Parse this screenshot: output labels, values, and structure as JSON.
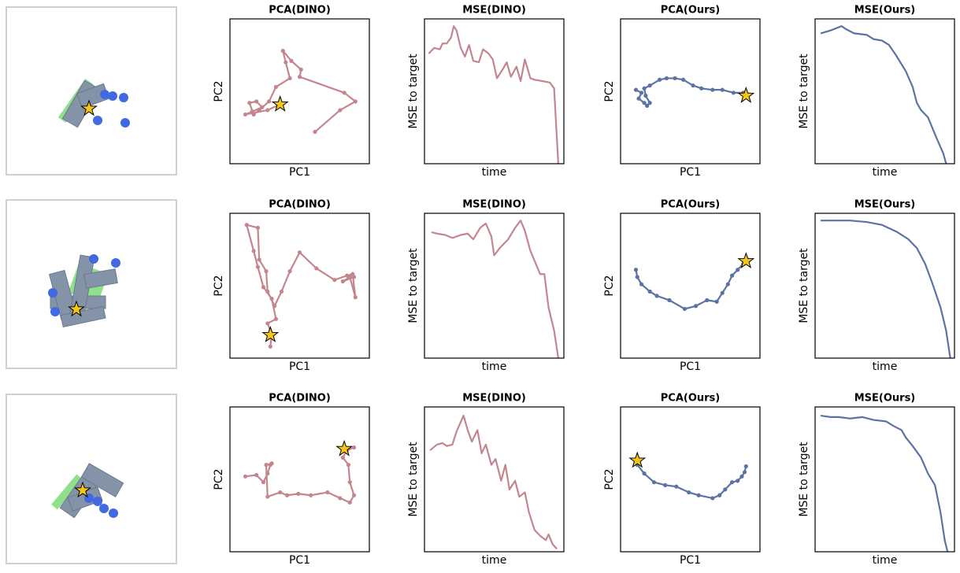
{
  "chart_data": [
    {
      "type": "line",
      "title": "PCA(DINO)",
      "xlabel": "PC1",
      "ylabel": "PC2",
      "marker": true,
      "color": "#c4868e",
      "xlim": [
        0,
        100
      ],
      "ylim": [
        0,
        100
      ],
      "x": [
        61,
        79,
        90,
        82,
        50,
        51,
        44,
        38,
        40,
        43,
        33,
        28,
        21,
        17,
        14,
        19,
        23,
        16,
        11,
        27,
        36
      ],
      "values": [
        22,
        37,
        43,
        49,
        60,
        65,
        71,
        78,
        70,
        59,
        53,
        43,
        37,
        34,
        42,
        43,
        39,
        36,
        34,
        37,
        41
      ],
      "target": {
        "x": 36,
        "y": 41
      }
    },
    {
      "type": "line",
      "title": "MSE(DINO)",
      "xlabel": "time",
      "ylabel": "MSE to target",
      "marker": false,
      "color": "#c4868e",
      "xlim": [
        0,
        100
      ],
      "ylim": [
        0,
        100
      ],
      "x": [
        3,
        7,
        11,
        13,
        16,
        19,
        21,
        23,
        26,
        29,
        32,
        35,
        39,
        42,
        46,
        49,
        52,
        56,
        59,
        62,
        66,
        69,
        72,
        76,
        79,
        85,
        90,
        93,
        96
      ],
      "values": [
        76,
        80,
        79,
        83,
        83,
        87,
        95,
        92,
        80,
        74,
        82,
        71,
        70,
        79,
        76,
        72,
        59,
        65,
        70,
        60,
        67,
        57,
        72,
        59,
        58,
        57,
        56,
        52,
        0
      ]
    },
    {
      "type": "line",
      "title": "PCA(Ours)",
      "xlabel": "PC1",
      "ylabel": "PC2",
      "marker": true,
      "color": "#5a73a3",
      "xlim": [
        0,
        100
      ],
      "ylim": [
        0,
        100
      ],
      "x": [
        11,
        15,
        13,
        17,
        19,
        21,
        18,
        17,
        21,
        28,
        33,
        39,
        45,
        52,
        58,
        66,
        73,
        81,
        88,
        91
      ],
      "values": [
        51,
        49,
        45,
        42,
        40,
        42,
        47,
        52,
        54,
        58,
        59,
        59,
        58,
        54,
        52,
        51,
        51,
        49,
        49,
        48
      ],
      "target": {
        "x": 90,
        "y": 47
      }
    },
    {
      "type": "line",
      "title": "MSE(Ours)",
      "xlabel": "time",
      "ylabel": "MSE to target",
      "marker": false,
      "color": "#5a73a3",
      "xlim": [
        0,
        100
      ],
      "ylim": [
        0,
        100
      ],
      "x": [
        4,
        11,
        19,
        22,
        28,
        37,
        42,
        48,
        53,
        58,
        65,
        70,
        73,
        76,
        81,
        87,
        92,
        94
      ],
      "values": [
        90,
        92,
        95,
        93,
        90,
        89,
        86,
        85,
        82,
        75,
        64,
        53,
        42,
        37,
        32,
        18,
        7,
        0
      ]
    },
    {
      "type": "line",
      "title": "PCA(DINO)",
      "xlabel": "PC1",
      "ylabel": "PC2",
      "marker": true,
      "color": "#c4868e",
      "xlim": [
        0,
        100
      ],
      "ylim": [
        0,
        100
      ],
      "x": [
        29,
        30,
        27,
        33,
        30,
        24,
        20,
        17,
        12,
        20,
        21,
        26,
        27,
        32,
        37,
        43,
        50,
        62,
        75,
        84,
        88,
        90,
        86,
        81,
        89
      ],
      "values": [
        8,
        16,
        24,
        27,
        41,
        49,
        63,
        74,
        92,
        90,
        68,
        60,
        46,
        36,
        46,
        60,
        73,
        62,
        54,
        57,
        58,
        42,
        56,
        53,
        56
      ],
      "target": {
        "x": 29,
        "y": 16
      }
    },
    {
      "type": "line",
      "title": "MSE(DINO)",
      "xlabel": "time",
      "ylabel": "MSE to target",
      "marker": false,
      "color": "#c4868e",
      "xlim": [
        0,
        100
      ],
      "ylim": [
        0,
        100
      ],
      "x": [
        5,
        9,
        15,
        20,
        26,
        31,
        35,
        40,
        44,
        48,
        50,
        54,
        60,
        65,
        69,
        72,
        76,
        83,
        86,
        89,
        93,
        96
      ],
      "values": [
        87,
        86,
        85,
        83,
        85,
        86,
        82,
        90,
        93,
        84,
        71,
        76,
        82,
        90,
        95,
        88,
        74,
        58,
        58,
        35,
        19,
        0
      ]
    },
    {
      "type": "line",
      "title": "PCA(Ours)",
      "xlabel": "PC1",
      "ylabel": "PC2",
      "marker": true,
      "color": "#5a73a3",
      "xlim": [
        0,
        100
      ],
      "ylim": [
        0,
        100
      ],
      "x": [
        11,
        12,
        15,
        21,
        26,
        35,
        46,
        54,
        62,
        69,
        73,
        77,
        80,
        84,
        88,
        91
      ],
      "values": [
        61,
        56,
        51,
        46,
        43,
        40,
        34,
        36,
        40,
        39,
        45,
        51,
        57,
        61,
        65,
        68
      ],
      "target": {
        "x": 90,
        "y": 67
      }
    },
    {
      "type": "line",
      "title": "MSE(Ours)",
      "xlabel": "time",
      "ylabel": "MSE to target",
      "marker": false,
      "color": "#5a73a3",
      "xlim": [
        0,
        100
      ],
      "ylim": [
        0,
        100
      ],
      "x": [
        4,
        14,
        25,
        37,
        48,
        59,
        67,
        73,
        79,
        84,
        90,
        94,
        97
      ],
      "values": [
        95,
        95,
        95,
        94,
        92,
        87,
        82,
        76,
        65,
        52,
        35,
        19,
        0
      ]
    },
    {
      "type": "line",
      "title": "PCA(DINO)",
      "xlabel": "PC1",
      "ylabel": "PC2",
      "marker": true,
      "color": "#c4868e",
      "xlim": [
        0,
        100
      ],
      "ylim": [
        0,
        100
      ],
      "x": [
        11,
        19,
        24,
        27,
        29,
        30,
        26,
        27,
        36,
        41,
        49,
        58,
        70,
        79,
        86,
        89,
        86,
        85,
        81,
        84,
        89
      ],
      "values": [
        52,
        53,
        48,
        54,
        60,
        61,
        60,
        38,
        41,
        39,
        40,
        39,
        41,
        37,
        34,
        39,
        48,
        60,
        65,
        70,
        72
      ],
      "target": {
        "x": 82,
        "y": 71
      }
    },
    {
      "type": "line",
      "title": "MSE(DINO)",
      "xlabel": "time",
      "ylabel": "MSE to target",
      "marker": false,
      "color": "#c4868e",
      "xlim": [
        0,
        100
      ],
      "ylim": [
        0,
        100
      ],
      "x": [
        4,
        9,
        13,
        16,
        20,
        23,
        28,
        31,
        34,
        38,
        41,
        44,
        48,
        51,
        55,
        58,
        61,
        65,
        68,
        72,
        75,
        79,
        83,
        87,
        89,
        92,
        95
      ],
      "values": [
        70,
        74,
        75,
        73,
        74,
        83,
        94,
        84,
        76,
        84,
        68,
        74,
        60,
        64,
        49,
        60,
        43,
        49,
        38,
        41,
        27,
        15,
        11,
        8,
        12,
        5,
        2
      ]
    },
    {
      "type": "line",
      "title": "PCA(Ours)",
      "xlabel": "PC1",
      "ylabel": "PC2",
      "marker": true,
      "color": "#5a73a3",
      "xlim": [
        0,
        100
      ],
      "ylim": [
        0,
        100
      ],
      "x": [
        12,
        17,
        24,
        32,
        40,
        49,
        56,
        66,
        71,
        75,
        80,
        84,
        87,
        89,
        90
      ],
      "values": [
        60,
        54,
        48,
        46,
        45,
        41,
        39,
        37,
        39,
        43,
        48,
        49,
        52,
        55,
        59
      ],
      "target": {
        "x": 12,
        "y": 63
      }
    },
    {
      "type": "line",
      "title": "MSE(Ours)",
      "xlabel": "time",
      "ylabel": "MSE to target",
      "marker": false,
      "color": "#5a73a3",
      "xlim": [
        0,
        100
      ],
      "ylim": [
        0,
        100
      ],
      "x": [
        4,
        11,
        17,
        25,
        34,
        42,
        51,
        56,
        62,
        65,
        70,
        76,
        81,
        86,
        90,
        93,
        95
      ],
      "values": [
        94,
        93,
        93,
        92,
        93,
        91,
        90,
        87,
        84,
        79,
        73,
        65,
        54,
        46,
        27,
        8,
        0
      ]
    }
  ]
}
